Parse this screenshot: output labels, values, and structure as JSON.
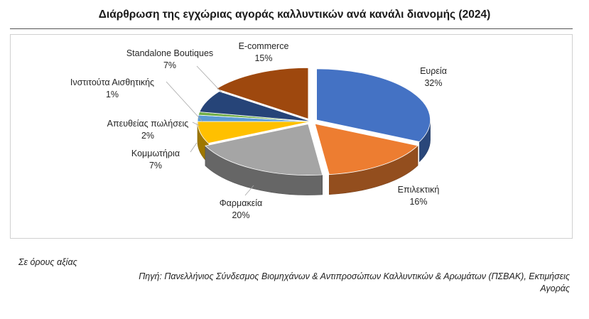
{
  "title": "Διάρθρωση της εγχώριας αγοράς καλλυντικών ανά κανάλι διανομής (2024)",
  "note": "Σε όρους αξίας",
  "source_line1": "Πηγή:  Πανελλήνιος Σύνδεσμος Βιομηχάνων & Αντιπροσώπων Καλλυντικών & Αρωμάτων (ΠΣΒΑΚ),  Εκτιμήσεις",
  "source_line2": "Αγοράς",
  "chart_data": {
    "type": "pie",
    "style": "3d-exploded",
    "slices": [
      {
        "name": "Ευρεία",
        "value": 32,
        "label": "32%",
        "color": "#4472C4"
      },
      {
        "name": "Επιλεκτική",
        "value": 16,
        "label": "16%",
        "color": "#ED7D31"
      },
      {
        "name": "Φαρμακεία",
        "value": 20,
        "label": "20%",
        "color": "#A5A5A5"
      },
      {
        "name": "Κομμωτήρια",
        "value": 7,
        "label": "7%",
        "color": "#FFC000"
      },
      {
        "name": "Απευθείας πωλήσεις",
        "value": 2,
        "label": "2%",
        "color": "#5B9BD5"
      },
      {
        "name": "Ινστιτούτα Αισθητικής",
        "value": 1,
        "label": "1%",
        "color": "#70AD47"
      },
      {
        "name": "Standalone Boutiques",
        "value": 7,
        "label": "7%",
        "color": "#264478"
      },
      {
        "name": "E-commerce",
        "value": 15,
        "label": "15%",
        "color": "#9E480E"
      }
    ]
  }
}
